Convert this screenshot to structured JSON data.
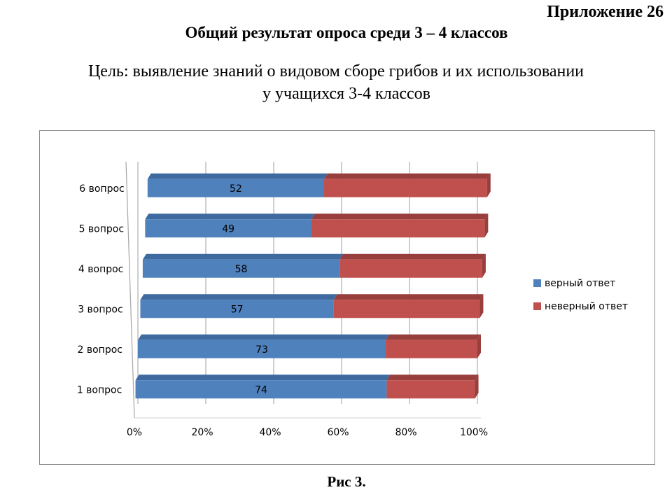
{
  "header": {
    "appendix": "Приложение 26",
    "title": "Общий результат опроса среди 3 – 4 классов",
    "goal_line1": "Цель: выявление знаний о видовом сборе грибов и их использовании",
    "goal_line2": "у учащихся 3-4 классов"
  },
  "caption": "Рис 3.",
  "colors": {
    "correct": "#4f81bd",
    "correct_top": "#3f6aa0",
    "incorrect": "#c0504d",
    "incorrect_top": "#983e3c",
    "grid": "#bfbfbf"
  },
  "chart_data": {
    "type": "bar",
    "orientation": "horizontal",
    "stacked": "percent",
    "categories": [
      "1 вопрос",
      "2 вопрос",
      "3 вопрос",
      "4 вопрос",
      "5 вопрос",
      "6 вопрос"
    ],
    "series": [
      {
        "name": "верный ответ",
        "values": [
          74,
          73,
          57,
          58,
          49,
          52
        ]
      },
      {
        "name": "неверный ответ",
        "values": [
          26,
          27,
          43,
          42,
          51,
          48
        ]
      }
    ],
    "x_ticks": [
      "0%",
      "20%",
      "40%",
      "60%",
      "80%",
      "100%"
    ],
    "xlim": [
      0,
      100
    ],
    "data_labels": "верный ответ",
    "grid": true,
    "legend_position": "right"
  }
}
